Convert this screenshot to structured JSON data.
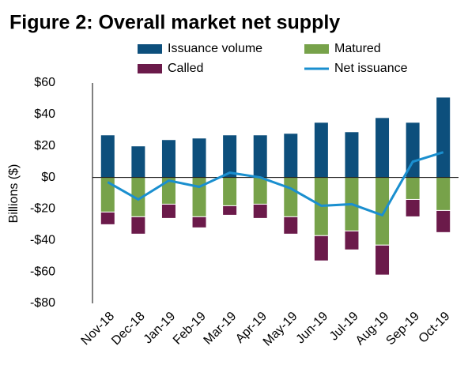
{
  "chart_data": {
    "type": "bar",
    "title": "Figure 2: Overall market net supply",
    "y_label": "Billions  ($)",
    "categories": [
      "Nov-18",
      "Dec-18",
      "Jan-19",
      "Feb-19",
      "Mar-19",
      "Apr-19",
      "May-19",
      "Jun-19",
      "Jul-19",
      "Aug-19",
      "Sep-19",
      "Oct-19"
    ],
    "series": [
      {
        "name": "Issuance volume",
        "type": "bar",
        "color": "#0d4f7c",
        "values": [
          27,
          20,
          24,
          25,
          27,
          27,
          28,
          35,
          29,
          38,
          35,
          51
        ]
      },
      {
        "name": "Matured",
        "type": "bar",
        "color": "#77a24a",
        "values": [
          -22,
          -25,
          -17,
          -25,
          -18,
          -17,
          -25,
          -37,
          -34,
          -43,
          -14,
          -21
        ]
      },
      {
        "name": "Called",
        "type": "bar",
        "color": "#6b1a4a",
        "values": [
          -8,
          -11,
          -9,
          -7,
          -6,
          -9,
          -11,
          -16,
          -12,
          -19,
          -11,
          -14
        ]
      },
      {
        "name": "Net issuance",
        "type": "line",
        "color": "#1a8fcf",
        "values": [
          -3,
          -14,
          -2,
          -6,
          3,
          0,
          -7,
          -18,
          -17,
          -24,
          10,
          16
        ]
      }
    ],
    "ylim": [
      -80,
      60
    ],
    "yticks": [
      {
        "value": -80,
        "label": "-$80"
      },
      {
        "value": -60,
        "label": "-$60"
      },
      {
        "value": -40,
        "label": "-$40"
      },
      {
        "value": -20,
        "label": "-$20"
      },
      {
        "value": 0,
        "label": "$0"
      },
      {
        "value": 20,
        "label": "$20"
      },
      {
        "value": 40,
        "label": "$40"
      },
      {
        "value": 60,
        "label": "$60"
      }
    ],
    "grid": false
  }
}
